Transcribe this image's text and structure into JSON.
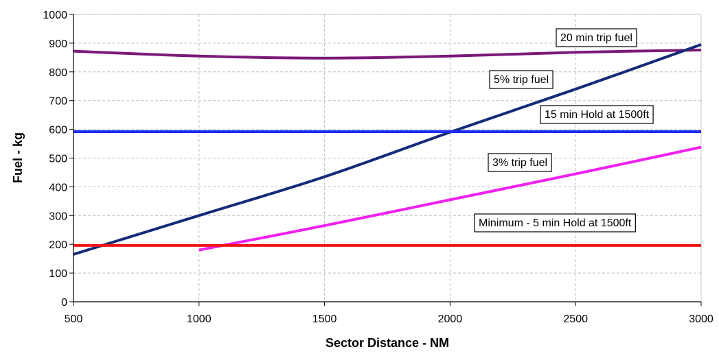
{
  "chart_data": {
    "type": "line",
    "xlabel": "Sector Distance - NM",
    "ylabel": "Fuel - kg",
    "xlim": [
      500,
      3000
    ],
    "ylim": [
      0,
      1000
    ],
    "x_ticks": [
      "500",
      "1000",
      "1500",
      "2000",
      "2500",
      "3000"
    ],
    "y_ticks": [
      "0",
      "100",
      "200",
      "300",
      "400",
      "500",
      "600",
      "700",
      "800",
      "900",
      "1000"
    ],
    "grid": "dashed",
    "series": [
      {
        "name": "20 min trip fuel",
        "color": "#7b1a78",
        "x": [
          500,
          1000,
          1500,
          2000,
          2500,
          3000
        ],
        "y": [
          872,
          855,
          848,
          855,
          868,
          876
        ]
      },
      {
        "name": "5% trip fuel",
        "color": "#152a78",
        "x": [
          500,
          1000,
          1500,
          2000,
          2500,
          3000
        ],
        "y": [
          165,
          300,
          435,
          590,
          740,
          895
        ]
      },
      {
        "name": "15 min Hold at 1500ft",
        "color": "#1c2cf0",
        "x": [
          500,
          3000
        ],
        "y": [
          592,
          592
        ]
      },
      {
        "name": "3% trip fuel",
        "color": "#f020f0",
        "x": [
          1000,
          1500,
          2000,
          2500,
          3000
        ],
        "y": [
          180,
          265,
          355,
          445,
          538
        ]
      },
      {
        "name": "Minimum - 5 min Hold at 1500ft",
        "color": "#f01414",
        "x": [
          500,
          3000
        ],
        "y": [
          196,
          196
        ]
      }
    ],
    "annotations": [
      {
        "text": "20 min trip fuel",
        "series": "20 min trip fuel"
      },
      {
        "text": "5% trip fuel",
        "series": "5% trip fuel"
      },
      {
        "text": "15 min Hold at 1500ft",
        "series": "15 min Hold at 1500ft"
      },
      {
        "text": "3% trip fuel",
        "series": "3% trip fuel"
      },
      {
        "text": "Minimum - 5 min Hold at 1500ft",
        "series": "Minimum - 5 min Hold at 1500ft"
      }
    ]
  }
}
